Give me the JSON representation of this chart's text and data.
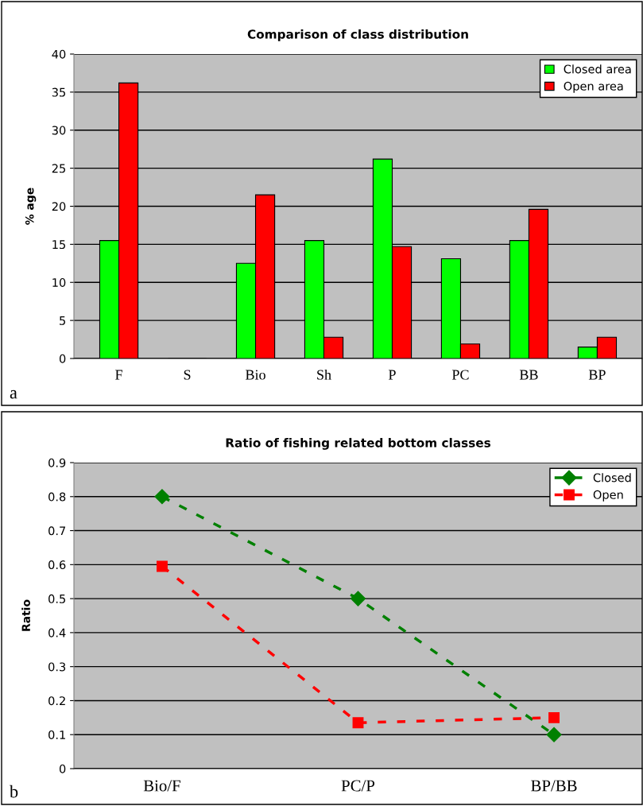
{
  "chart_data": [
    {
      "type": "bar",
      "title": "Comparison of class distribution",
      "ylabel": "% age",
      "categories": [
        "F",
        "S",
        "Bio",
        "Sh",
        "P",
        "PC",
        "BB",
        "BP"
      ],
      "series": [
        {
          "name": "Closed area",
          "color": "#00ff00",
          "values": [
            15.5,
            0,
            12.5,
            15.5,
            26.2,
            13.1,
            15.5,
            1.5
          ]
        },
        {
          "name": "Open area",
          "color": "#ff0000",
          "values": [
            36.2,
            0,
            21.5,
            2.8,
            14.7,
            1.9,
            19.6,
            2.8
          ]
        }
      ],
      "ylim": [
        0,
        40
      ],
      "yticks": [
        0,
        5,
        10,
        15,
        20,
        25,
        30,
        35,
        40
      ],
      "grid": "y",
      "legend": "top right",
      "annotations": [
        "a"
      ]
    },
    {
      "type": "line",
      "title": "Ratio of fishing related bottom classes",
      "ylabel": "Ratio",
      "categories": [
        "Bio/F",
        "PC/P",
        "BP/BB"
      ],
      "series": [
        {
          "name": "Closed",
          "color": "#008000",
          "marker": "diamond",
          "values": [
            0.8,
            0.5,
            0.1
          ]
        },
        {
          "name": "Open",
          "color": "#ff0000",
          "marker": "square",
          "values": [
            0.595,
            0.135,
            0.15
          ]
        }
      ],
      "line_style": "dashed",
      "ylim": [
        0,
        0.9
      ],
      "yticks": [
        0,
        0.1,
        0.2,
        0.3,
        0.4,
        0.5,
        0.6,
        0.7,
        0.8,
        0.9
      ],
      "grid": "y",
      "legend": "top right",
      "annotations": [
        "b"
      ]
    }
  ]
}
